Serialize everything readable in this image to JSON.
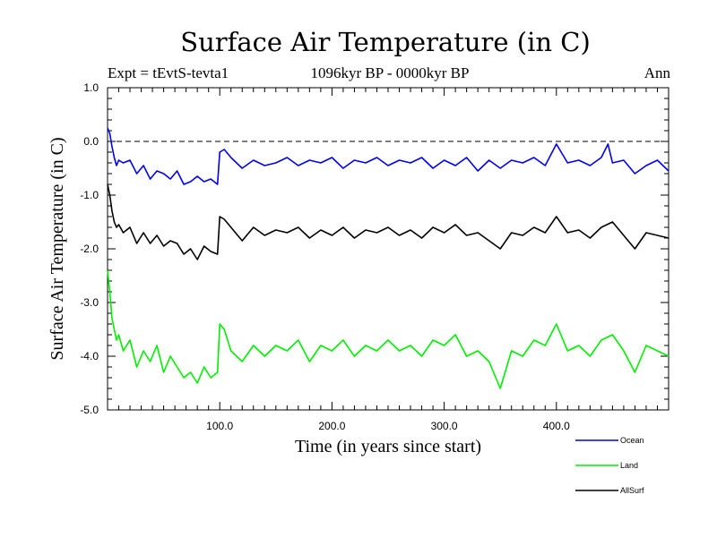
{
  "chart_data": {
    "type": "line",
    "title": "Surface Air Temperature (in C)",
    "subtitle_left": "Expt = tEvtS-tevta1",
    "subtitle_center": "1096kyr BP - 0000kyr BP",
    "subtitle_right": "Ann",
    "xlabel": "Time (in years since start)",
    "ylabel": "Surface Air Temperature (in C)",
    "xlim": [
      0,
      500
    ],
    "ylim": [
      -5.0,
      1.0
    ],
    "x_ticks": [
      100,
      200,
      300,
      400
    ],
    "x_tick_labels": [
      "100.0",
      "200.0",
      "300.0",
      "400.0"
    ],
    "y_ticks": [
      1.0,
      0.0,
      -1.0,
      -2.0,
      -3.0,
      -4.0,
      -5.0
    ],
    "y_tick_labels": [
      "1.0",
      "0.0",
      "-1.0",
      "-2.0",
      "-3.0",
      "-4.0",
      "-5.0"
    ],
    "reference_line": 0.0,
    "legend_position": "bottom-right",
    "series": [
      {
        "name": "Ocean",
        "color": "#0000ee",
        "x": [
          0,
          2,
          4,
          6,
          8,
          10,
          14,
          20,
          26,
          32,
          38,
          44,
          50,
          56,
          62,
          68,
          74,
          80,
          86,
          92,
          98,
          100,
          104,
          110,
          120,
          130,
          140,
          150,
          160,
          170,
          180,
          190,
          200,
          210,
          220,
          230,
          240,
          250,
          260,
          270,
          280,
          290,
          300,
          310,
          320,
          330,
          340,
          350,
          360,
          370,
          380,
          390,
          400,
          410,
          420,
          430,
          440,
          446,
          450,
          460,
          470,
          480,
          490,
          500
        ],
        "values": [
          0.25,
          0.15,
          -0.1,
          -0.3,
          -0.45,
          -0.35,
          -0.4,
          -0.35,
          -0.6,
          -0.45,
          -0.7,
          -0.55,
          -0.6,
          -0.7,
          -0.55,
          -0.8,
          -0.75,
          -0.65,
          -0.75,
          -0.7,
          -0.8,
          -0.2,
          -0.15,
          -0.3,
          -0.5,
          -0.35,
          -0.45,
          -0.4,
          -0.3,
          -0.45,
          -0.35,
          -0.4,
          -0.3,
          -0.5,
          -0.35,
          -0.4,
          -0.3,
          -0.45,
          -0.35,
          -0.4,
          -0.3,
          -0.5,
          -0.35,
          -0.45,
          -0.3,
          -0.55,
          -0.35,
          -0.5,
          -0.35,
          -0.4,
          -0.3,
          -0.45,
          -0.05,
          -0.4,
          -0.35,
          -0.45,
          -0.3,
          -0.05,
          -0.4,
          -0.35,
          -0.6,
          -0.45,
          -0.35,
          -0.55
        ]
      },
      {
        "name": "Land",
        "color": "#00ee00",
        "x": [
          0,
          2,
          4,
          6,
          8,
          10,
          14,
          20,
          26,
          32,
          38,
          44,
          50,
          56,
          62,
          68,
          74,
          80,
          86,
          92,
          98,
          100,
          104,
          110,
          120,
          130,
          140,
          150,
          160,
          170,
          180,
          190,
          200,
          210,
          220,
          230,
          240,
          250,
          260,
          270,
          280,
          290,
          300,
          310,
          320,
          330,
          340,
          350,
          360,
          370,
          380,
          390,
          400,
          410,
          420,
          430,
          440,
          450,
          460,
          470,
          480,
          490,
          500
        ],
        "values": [
          -2.4,
          -2.8,
          -3.3,
          -3.5,
          -3.7,
          -3.6,
          -3.9,
          -3.7,
          -4.2,
          -3.9,
          -4.1,
          -3.8,
          -4.3,
          -4.0,
          -4.2,
          -4.4,
          -4.3,
          -4.5,
          -4.2,
          -4.4,
          -4.3,
          -3.4,
          -3.5,
          -3.9,
          -4.1,
          -3.8,
          -4.0,
          -3.8,
          -3.9,
          -3.7,
          -4.1,
          -3.8,
          -3.9,
          -3.7,
          -4.0,
          -3.8,
          -3.9,
          -3.7,
          -3.9,
          -3.8,
          -4.0,
          -3.7,
          -3.8,
          -3.6,
          -4.0,
          -3.9,
          -4.1,
          -4.6,
          -3.9,
          -4.0,
          -3.7,
          -3.8,
          -3.4,
          -3.9,
          -3.8,
          -4.0,
          -3.7,
          -3.6,
          -3.9,
          -4.3,
          -3.8,
          -3.9,
          -4.0
        ]
      },
      {
        "name": "AllSurf",
        "color": "#000000",
        "x": [
          0,
          2,
          4,
          6,
          8,
          10,
          14,
          20,
          26,
          32,
          38,
          44,
          50,
          56,
          62,
          68,
          74,
          80,
          86,
          92,
          98,
          100,
          104,
          110,
          120,
          130,
          140,
          150,
          160,
          170,
          180,
          190,
          200,
          210,
          220,
          230,
          240,
          250,
          260,
          270,
          280,
          290,
          300,
          310,
          320,
          330,
          340,
          350,
          360,
          370,
          380,
          390,
          400,
          410,
          420,
          430,
          440,
          450,
          460,
          470,
          480,
          490,
          500
        ],
        "values": [
          -0.8,
          -1.0,
          -1.3,
          -1.5,
          -1.6,
          -1.55,
          -1.7,
          -1.6,
          -1.9,
          -1.7,
          -1.9,
          -1.75,
          -1.95,
          -1.85,
          -1.9,
          -2.1,
          -2.0,
          -2.2,
          -1.95,
          -2.05,
          -2.1,
          -1.4,
          -1.45,
          -1.6,
          -1.85,
          -1.6,
          -1.75,
          -1.65,
          -1.7,
          -1.6,
          -1.8,
          -1.65,
          -1.75,
          -1.6,
          -1.8,
          -1.65,
          -1.7,
          -1.6,
          -1.75,
          -1.65,
          -1.8,
          -1.6,
          -1.7,
          -1.55,
          -1.75,
          -1.7,
          -1.85,
          -2.0,
          -1.7,
          -1.75,
          -1.6,
          -1.7,
          -1.4,
          -1.7,
          -1.65,
          -1.8,
          -1.6,
          -1.5,
          -1.75,
          -2.0,
          -1.7,
          -1.75,
          -1.8
        ]
      }
    ]
  }
}
